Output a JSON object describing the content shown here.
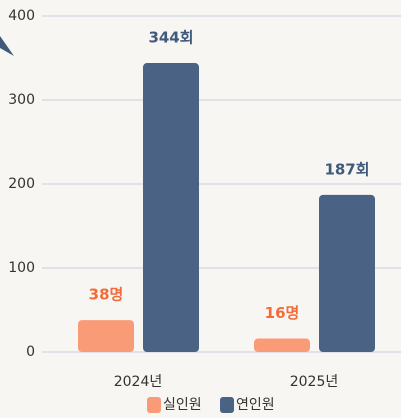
{
  "chart_data": {
    "type": "bar",
    "categories": [
      "2024년",
      "2025년"
    ],
    "series": [
      {
        "name": "실인원",
        "color": "#f99b77",
        "values": [
          38,
          16
        ],
        "value_labels": [
          "38명",
          "16명"
        ],
        "label_color": "#f26b3a"
      },
      {
        "name": "연인원",
        "color": "#4a6283",
        "values": [
          344,
          187
        ],
        "value_labels": [
          "344회",
          "187회"
        ],
        "label_color": "#3f5a7a"
      }
    ],
    "ylim": [
      0,
      400
    ],
    "yticks": [
      0,
      100,
      200,
      300,
      400
    ],
    "grid": true,
    "legend": "bottom"
  }
}
